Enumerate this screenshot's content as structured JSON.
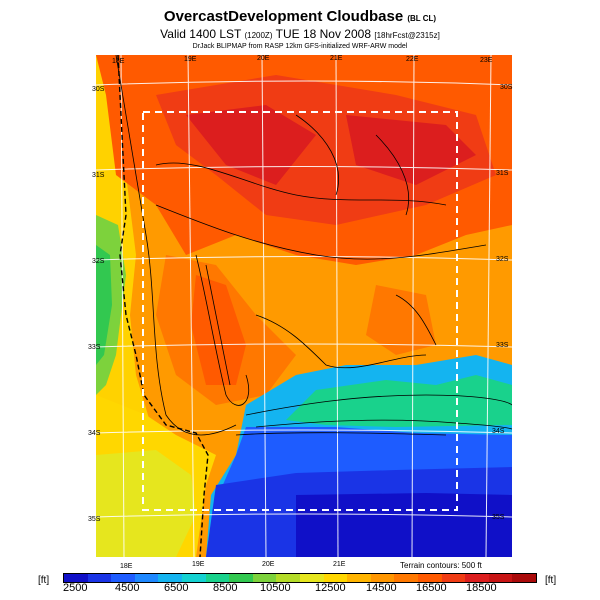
{
  "header": {
    "title": "OvercastDevelopment Cloudbase",
    "title_suffix": "(BL CL)",
    "valid_line": "Valid 1400 LST",
    "valid_code": "(1200Z)",
    "valid_date": "TUE 18 Nov 2008",
    "forecast": "[18hrFcst@2315z]",
    "credit": "DrJack BLIPMAP from RASP 12km GFS-initialized WRF-ARW model"
  },
  "map": {
    "lon_labels_top": [
      "18E",
      "19E",
      "20E",
      "21E",
      "22E",
      "23E"
    ],
    "lon_labels_bottom": [
      "18E",
      "19E",
      "20E",
      "21E"
    ],
    "lat_labels_left": [
      "30S",
      "31S",
      "32S",
      "33S",
      "34S",
      "35S"
    ],
    "lat_labels_right": [
      "30S",
      "31S",
      "32S",
      "33S",
      "34S",
      "35S"
    ],
    "terrain_note": "Terrain contours: 500 ft"
  },
  "colorbar": {
    "unit_left": "[ft]",
    "unit_right": "[ft]",
    "labels": [
      "2500",
      "4500",
      "6500",
      "8500",
      "10500",
      "12500",
      "14500",
      "16500",
      "18500"
    ],
    "colors": [
      "#1010c8",
      "#1a34e6",
      "#1e5cff",
      "#1e88ff",
      "#14b4f0",
      "#14d2d2",
      "#19d28c",
      "#32c850",
      "#7dd23c",
      "#b4dc28",
      "#e6e61e",
      "#ffd700",
      "#ffb400",
      "#ff9600",
      "#ff7800",
      "#ff5a00",
      "#f03c14",
      "#dc1e1e",
      "#c81414",
      "#aa0a0a"
    ]
  }
}
